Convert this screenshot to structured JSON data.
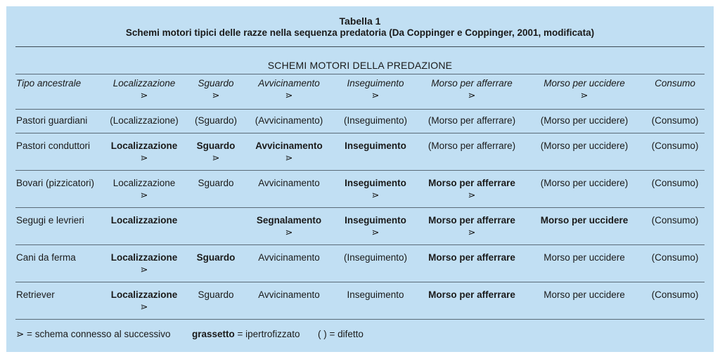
{
  "table": {
    "title": "Tabella 1",
    "subtitle": "Schemi motori tipici delle razze nella sequenza predatoria (Da Coppinger e Coppinger, 2001, modificata)",
    "section_title": "SCHEMI MOTORI DELLA PREDAZIONE",
    "arrow_symbol": "⋗",
    "headers": [
      {
        "text": "Tipo ancestrale",
        "arrow": false
      },
      {
        "text": "Localizzazione",
        "arrow": true
      },
      {
        "text": "Sguardo",
        "arrow": true
      },
      {
        "text": "Avvicinamento",
        "arrow": true
      },
      {
        "text": "Inseguimento",
        "arrow": true
      },
      {
        "text": "Morso per afferrare",
        "arrow": true
      },
      {
        "text": "Morso per uccidere",
        "arrow": true
      },
      {
        "text": "Consumo",
        "arrow": false
      }
    ],
    "rows": [
      {
        "type": "Pastori guardiani",
        "cells": [
          {
            "text": "(Localizzazione)",
            "bold": false,
            "arrow": false
          },
          {
            "text": "(Sguardo)",
            "bold": false,
            "arrow": false
          },
          {
            "text": "(Avvicinamento)",
            "bold": false,
            "arrow": false
          },
          {
            "text": "(Inseguimento)",
            "bold": false,
            "arrow": false
          },
          {
            "text": "(Morso per afferrare)",
            "bold": false,
            "arrow": false
          },
          {
            "text": "(Morso per uccidere)",
            "bold": false,
            "arrow": false
          },
          {
            "text": "(Consumo)",
            "bold": false,
            "arrow": false
          }
        ]
      },
      {
        "type": "Pastori conduttori",
        "cells": [
          {
            "text": "Localizzazione",
            "bold": true,
            "arrow": true
          },
          {
            "text": "Sguardo",
            "bold": true,
            "arrow": true
          },
          {
            "text": "Avvicinamento",
            "bold": true,
            "arrow": true
          },
          {
            "text": "Inseguimento",
            "bold": true,
            "arrow": false
          },
          {
            "text": "(Morso per afferrare)",
            "bold": false,
            "arrow": false
          },
          {
            "text": "(Morso per uccidere)",
            "bold": false,
            "arrow": false
          },
          {
            "text": "(Consumo)",
            "bold": false,
            "arrow": false
          }
        ]
      },
      {
        "type": "Bovari (pizzicatori)",
        "cells": [
          {
            "text": "Localizzazione",
            "bold": false,
            "arrow": true
          },
          {
            "text": "Sguardo",
            "bold": false,
            "arrow": false
          },
          {
            "text": "Avvicinamento",
            "bold": false,
            "arrow": false
          },
          {
            "text": "Inseguimento",
            "bold": true,
            "arrow": true
          },
          {
            "text": "Morso per afferrare",
            "bold": true,
            "arrow": true
          },
          {
            "text": "(Morso per uccidere)",
            "bold": false,
            "arrow": false
          },
          {
            "text": "(Consumo)",
            "bold": false,
            "arrow": false
          }
        ]
      },
      {
        "type": "Segugi e levrieri",
        "cells": [
          {
            "text": "Localizzazione",
            "bold": true,
            "arrow": false
          },
          {
            "text": "",
            "bold": false,
            "arrow": false
          },
          {
            "text": "Segnalamento",
            "bold": true,
            "arrow": true
          },
          {
            "text": "Inseguimento",
            "bold": true,
            "arrow": true
          },
          {
            "text": "Morso per afferrare",
            "bold": true,
            "arrow": true
          },
          {
            "text": "Morso per uccidere",
            "bold": true,
            "arrow": false
          },
          {
            "text": "(Consumo)",
            "bold": false,
            "arrow": false
          }
        ]
      },
      {
        "type": "Cani da ferma",
        "cells": [
          {
            "text": "Localizzazione",
            "bold": true,
            "arrow": true
          },
          {
            "text": "Sguardo",
            "bold": true,
            "arrow": false
          },
          {
            "text": "Avvicinamento",
            "bold": false,
            "arrow": false
          },
          {
            "text": "(Inseguimento)",
            "bold": false,
            "arrow": false
          },
          {
            "text": "Morso per afferrare",
            "bold": true,
            "arrow": false
          },
          {
            "text": "Morso per uccidere",
            "bold": false,
            "arrow": false
          },
          {
            "text": "(Consumo)",
            "bold": false,
            "arrow": false
          }
        ]
      },
      {
        "type": "Retriever",
        "cells": [
          {
            "text": "Localizzazione",
            "bold": true,
            "arrow": true
          },
          {
            "text": "Sguardo",
            "bold": false,
            "arrow": false
          },
          {
            "text": "Avvicinamento",
            "bold": false,
            "arrow": false
          },
          {
            "text": "Inseguimento",
            "bold": false,
            "arrow": false
          },
          {
            "text": "Morso per afferrare",
            "bold": true,
            "arrow": false
          },
          {
            "text": "Morso per uccidere",
            "bold": false,
            "arrow": false
          },
          {
            "text": "(Consumo)",
            "bold": false,
            "arrow": false
          }
        ]
      }
    ],
    "legend": {
      "arrow_text": "⋗ = schema connesso al successivo",
      "bold_word": "grassetto",
      "bold_text": " = ipertrofizzato",
      "paren_text": "( ) = difetto"
    }
  }
}
